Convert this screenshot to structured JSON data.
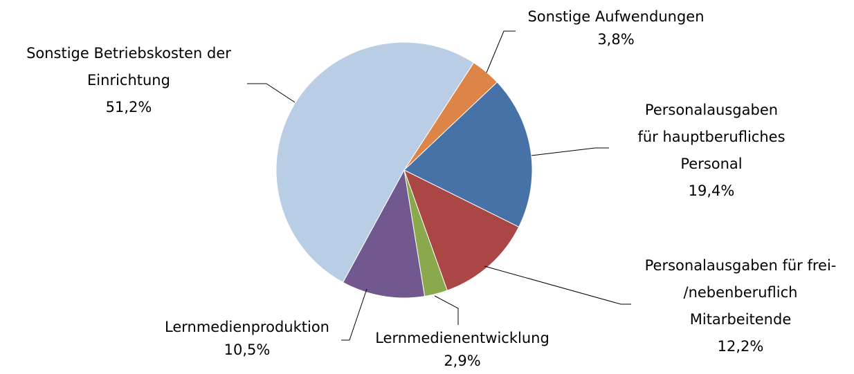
{
  "chart_data": {
    "type": "pie",
    "categories": [
      [
        "Sonstige Aufwendungen"
      ],
      [
        "Personalausgaben",
        "für hauptberufliches",
        "Personal"
      ],
      [
        "Personalausgaben für frei-",
        "/nebenberuflich",
        "Mitarbeitende"
      ],
      [
        "Lernmedienentwicklung"
      ],
      [
        "Lernmedienproduktion"
      ],
      [
        "Sonstige Betriebskosten der",
        "Einrichtung"
      ]
    ],
    "values": [
      3.8,
      19.4,
      12.2,
      2.9,
      10.5,
      51.2
    ],
    "value_labels": [
      "3,8%",
      "19,4%",
      "12,2%",
      "2,9%",
      "10,5%",
      "51,2%"
    ],
    "colors": [
      "#dd8547",
      "#4672a8",
      "#aa4644",
      "#8aa94c",
      "#71588f",
      "#b9cde5"
    ]
  }
}
